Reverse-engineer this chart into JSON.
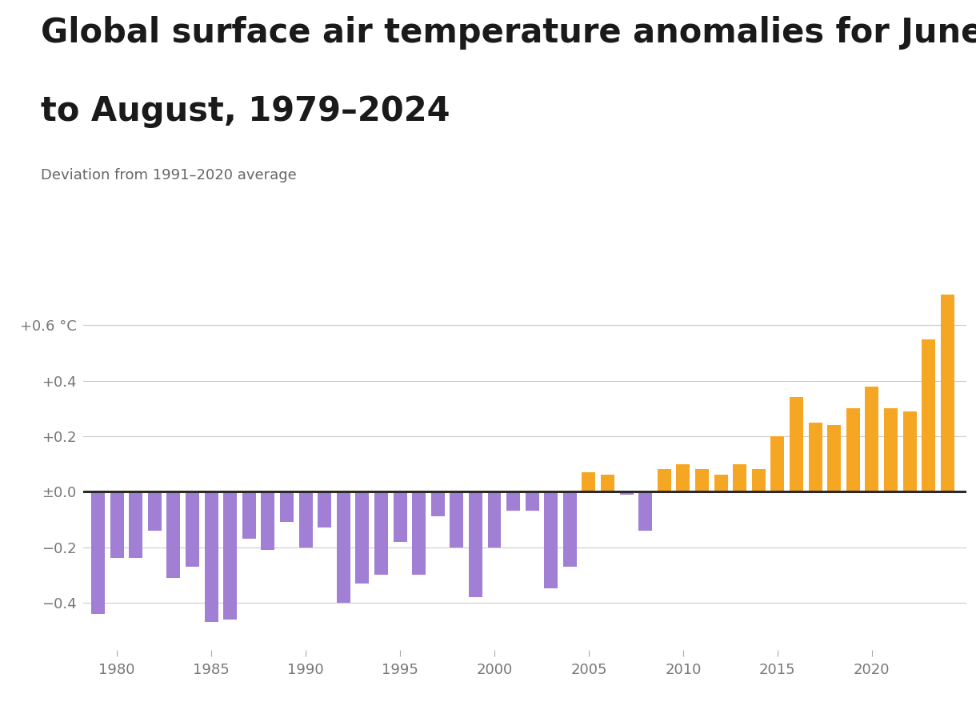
{
  "years": [
    1979,
    1980,
    1981,
    1982,
    1983,
    1984,
    1985,
    1986,
    1987,
    1988,
    1989,
    1990,
    1991,
    1992,
    1993,
    1994,
    1995,
    1996,
    1997,
    1998,
    1999,
    2000,
    2001,
    2002,
    2003,
    2004,
    2005,
    2006,
    2007,
    2008,
    2009,
    2010,
    2011,
    2012,
    2013,
    2014,
    2015,
    2016,
    2017,
    2018,
    2019,
    2020,
    2021,
    2022,
    2023,
    2024
  ],
  "values": [
    -0.44,
    -0.24,
    -0.24,
    -0.14,
    -0.31,
    -0.27,
    -0.47,
    -0.46,
    -0.17,
    -0.21,
    -0.11,
    -0.2,
    -0.13,
    -0.4,
    -0.33,
    -0.3,
    -0.18,
    -0.3,
    -0.09,
    -0.2,
    -0.38,
    -0.2,
    -0.07,
    -0.07,
    -0.35,
    -0.27,
    0.07,
    0.06,
    -0.01,
    -0.14,
    0.08,
    0.1,
    0.08,
    0.06,
    0.1,
    0.08,
    0.2,
    0.34,
    0.25,
    0.24,
    0.3,
    0.38,
    0.3,
    0.29,
    0.55,
    0.71
  ],
  "color_positive": "#f5a623",
  "color_negative": "#a07fd4",
  "title_line1": "Global surface air temperature anomalies for June",
  "title_line2": "to August, 1979–2024",
  "subtitle": "Deviation from 1991–2020 average",
  "yticks": [
    -0.4,
    -0.2,
    0.0,
    0.2,
    0.4,
    0.6
  ],
  "ytick_labels": [
    "−0.4",
    "−0.2",
    "±0.0",
    "+0.2",
    "+0.4",
    "+0.6 °C"
  ],
  "ylim": [
    -0.57,
    0.82
  ],
  "xlim": [
    1978.2,
    2025.0
  ],
  "background_color": "#ffffff",
  "title_fontsize": 30,
  "subtitle_fontsize": 13,
  "tick_fontsize": 13,
  "bar_width": 0.72
}
